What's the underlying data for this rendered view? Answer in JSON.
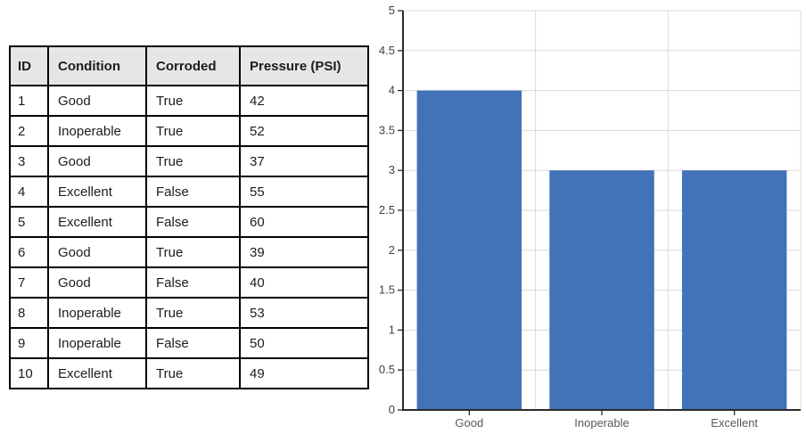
{
  "table": {
    "headers": [
      "ID",
      "Condition",
      "Corroded",
      "Pressure (PSI)"
    ],
    "rows": [
      [
        "1",
        "Good",
        "True",
        "42"
      ],
      [
        "2",
        "Inoperable",
        "True",
        "52"
      ],
      [
        "3",
        "Good",
        "True",
        "37"
      ],
      [
        "4",
        "Excellent",
        "False",
        "55"
      ],
      [
        "5",
        "Excellent",
        "False",
        "60"
      ],
      [
        "6",
        "Good",
        "True",
        "39"
      ],
      [
        "7",
        "Good",
        "False",
        "40"
      ],
      [
        "8",
        "Inoperable",
        "True",
        "53"
      ],
      [
        "9",
        "Inoperable",
        "False",
        "50"
      ],
      [
        "10",
        "Excellent",
        "True",
        "49"
      ]
    ],
    "header_bg": "#e7e6e6",
    "border_color": "#000000"
  },
  "chart_data": {
    "type": "bar",
    "categories": [
      "Good",
      "Inoperable",
      "Excellent"
    ],
    "values": [
      4,
      3,
      3
    ],
    "title": "",
    "xlabel": "",
    "ylabel": "",
    "ylim": [
      0,
      5
    ],
    "ytick_step": 0.5,
    "grid": true,
    "legend": false,
    "bar_color": "#4272b8",
    "gridline_color": "#d9d9d9",
    "axis_color": "#2b2b2b",
    "ytick_label_color": "#404040",
    "xtick_label_color": "#595959"
  }
}
